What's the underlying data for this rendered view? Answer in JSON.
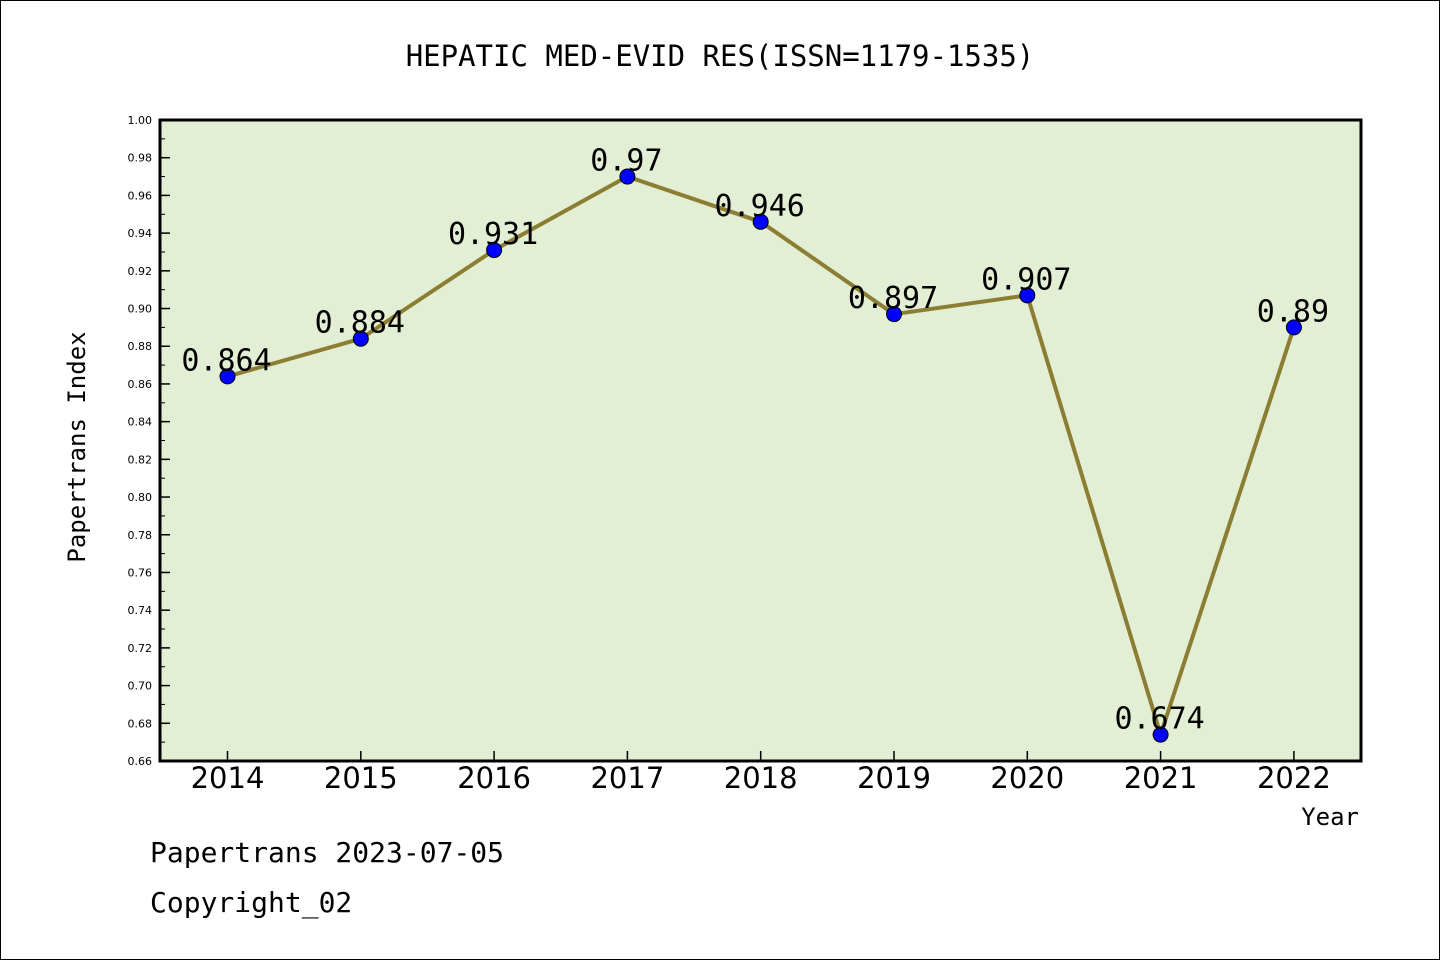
{
  "chart_data": {
    "type": "line",
    "title": "HEPATIC MED-EVID RES(ISSN=1179-1535)",
    "xlabel": "Year",
    "ylabel": "Papertrans Index",
    "categories": [
      "2014",
      "2015",
      "2016",
      "2017",
      "2018",
      "2019",
      "2020",
      "2021",
      "2022"
    ],
    "values": [
      0.864,
      0.884,
      0.931,
      0.97,
      0.946,
      0.897,
      0.907,
      0.674,
      0.89
    ],
    "data_labels": [
      "0.864",
      "0.884",
      "0.931",
      "0.97",
      "0.946",
      "0.897",
      "0.907",
      "0.674",
      "0.89"
    ],
    "ylim": [
      0.66,
      1.0
    ],
    "yticks": [
      "0.66",
      "0.68",
      "0.70",
      "0.72",
      "0.74",
      "0.76",
      "0.78",
      "0.80",
      "0.82",
      "0.84",
      "0.86",
      "0.88",
      "0.90",
      "0.92",
      "0.94",
      "0.96",
      "0.98",
      "1.00"
    ],
    "grid": false,
    "legend": "none",
    "colors": {
      "plot_background": "#e2efd5",
      "line": "#8b7d32",
      "marker": "#0000ff"
    }
  },
  "footer": {
    "date_line": "Papertrans 2023-07-05",
    "copyright": "Copyright_02"
  }
}
